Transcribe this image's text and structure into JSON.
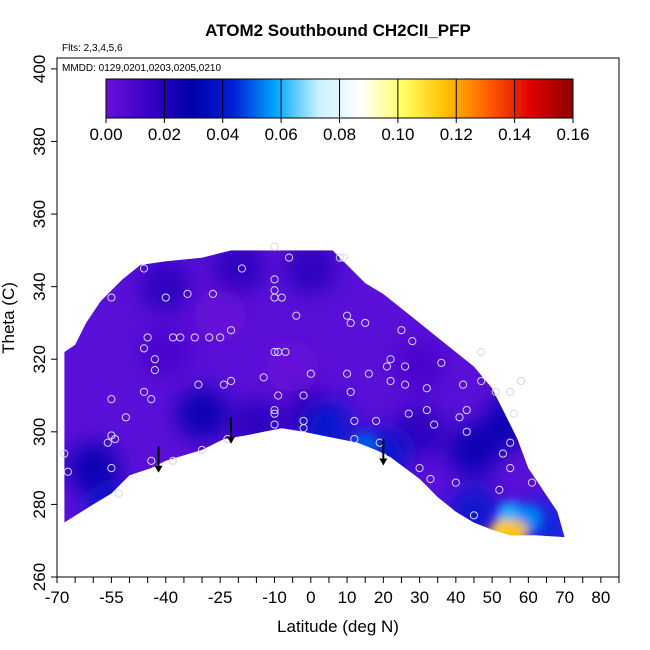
{
  "chart_data": {
    "type": "heatmap",
    "title": "ATOM2 Southbound CH2ClΙ_PFP",
    "annotations": {
      "flights": "Flts: 2,3,4,5,6",
      "dates": "MMDD: 0129,0201,0203,0205,0210"
    },
    "xlabel": "Latitude (deg N)",
    "ylabel": "Theta (C)",
    "xlim": [
      -70,
      85
    ],
    "ylim": [
      260,
      403
    ],
    "x_ticks": [
      -70,
      -55,
      -40,
      -25,
      -10,
      0,
      10,
      20,
      30,
      40,
      50,
      60,
      70,
      80
    ],
    "x_tick_labels": [
      "-70",
      "-55",
      "-40",
      "-25",
      "-10",
      "0",
      "10",
      "20",
      "30",
      "40",
      "50",
      "60",
      "70",
      "80"
    ],
    "x_minor_ticks": [
      -65,
      -60,
      -50,
      -45,
      -35,
      -30,
      -20,
      -15,
      -5,
      5,
      15,
      25,
      35,
      45,
      55,
      65,
      75,
      85
    ],
    "y_ticks": [
      260,
      280,
      300,
      320,
      340,
      360,
      380,
      400
    ],
    "y_tick_labels": [
      "260",
      "280",
      "300",
      "320",
      "340",
      "360",
      "380",
      "400"
    ],
    "colorbar": {
      "range": [
        0,
        0.16
      ],
      "ticks": [
        0,
        0.02,
        0.04,
        0.06,
        0.08,
        0.1,
        0.12,
        0.14,
        0.16
      ],
      "tick_labels": [
        "0.00",
        "0.02",
        "0.04",
        "0.06",
        "0.08",
        "0.10",
        "0.12",
        "0.14",
        "0.16"
      ],
      "colors": [
        "#6a10d8",
        "#3a00c8",
        "#0000a8",
        "#0020d8",
        "#00a8ff",
        "#c8f0ff",
        "#ffffff",
        "#ffff60",
        "#ffc000",
        "#ff6000",
        "#e00000",
        "#900000"
      ]
    },
    "field": {
      "upper_boundary": [
        [
          -68,
          322
        ],
        [
          -65,
          324
        ],
        [
          -62,
          330
        ],
        [
          -58,
          336
        ],
        [
          -52,
          342
        ],
        [
          -47,
          346
        ],
        [
          -40,
          347
        ],
        [
          -30,
          348
        ],
        [
          -22,
          350
        ],
        [
          -10,
          350
        ],
        [
          0,
          350
        ],
        [
          6,
          350
        ],
        [
          10,
          346
        ],
        [
          15,
          341
        ],
        [
          20,
          338
        ],
        [
          25,
          334
        ],
        [
          30,
          330
        ],
        [
          35,
          326
        ],
        [
          40,
          322
        ],
        [
          45,
          318
        ],
        [
          50,
          312
        ],
        [
          54,
          304
        ],
        [
          57,
          298
        ],
        [
          60,
          290
        ],
        [
          64,
          284
        ],
        [
          68,
          278
        ],
        [
          70,
          271
        ]
      ],
      "lower_boundary": [
        [
          -68,
          275
        ],
        [
          -60,
          280
        ],
        [
          -55,
          283
        ],
        [
          -50,
          288
        ],
        [
          -44,
          290
        ],
        [
          -40,
          292
        ],
        [
          -30,
          295
        ],
        [
          -24,
          298
        ],
        [
          -18,
          299
        ],
        [
          -13,
          300
        ],
        [
          -8,
          301
        ],
        [
          -2,
          300
        ],
        [
          3,
          299
        ],
        [
          8,
          298
        ],
        [
          13,
          297
        ],
        [
          18,
          295
        ],
        [
          22,
          293
        ],
        [
          26,
          290
        ],
        [
          30,
          287
        ],
        [
          35,
          282
        ],
        [
          40,
          278
        ],
        [
          45,
          275
        ],
        [
          50,
          273
        ],
        [
          55,
          271.5
        ],
        [
          62,
          271.5
        ],
        [
          70,
          271
        ]
      ],
      "features": [
        {
          "x": -5,
          "y": 318,
          "value": 0.0
        },
        {
          "x": -40,
          "y": 322,
          "value": 0.01
        },
        {
          "x": -25,
          "y": 332,
          "value": 0.0
        },
        {
          "x": 30,
          "y": 318,
          "value": 0.01
        },
        {
          "x": -40,
          "y": 340,
          "value": 0.02
        },
        {
          "x": 0,
          "y": 345,
          "value": 0.02
        },
        {
          "x": -20,
          "y": 345,
          "value": 0.02
        },
        {
          "x": -60,
          "y": 290,
          "value": 0.03
        },
        {
          "x": -15,
          "y": 302,
          "value": 0.02
        },
        {
          "x": 0,
          "y": 305,
          "value": 0.02
        },
        {
          "x": 30,
          "y": 300,
          "value": 0.02
        },
        {
          "x": 45,
          "y": 295,
          "value": 0.03
        },
        {
          "x": 55,
          "y": 303,
          "value": 0.03
        },
        {
          "x": -30,
          "y": 305,
          "value": 0.03
        },
        {
          "x": 5,
          "y": 301,
          "value": 0.04
        },
        {
          "x": 15,
          "y": 296,
          "value": 0.05
        },
        {
          "x": 20,
          "y": 294,
          "value": 0.04
        },
        {
          "x": -55,
          "y": 278,
          "value": 0.04
        },
        {
          "x": 45,
          "y": 278,
          "value": 0.04
        },
        {
          "x": 55,
          "y": 277,
          "value": 0.06
        },
        {
          "x": 60,
          "y": 276,
          "value": 0.055
        },
        {
          "x": 53,
          "y": 272,
          "value": 0.11
        },
        {
          "x": 56,
          "y": 272,
          "value": 0.115
        },
        {
          "x": 64,
          "y": 274,
          "value": 0.045
        }
      ]
    },
    "samples": [
      {
        "x": -68,
        "y": 294
      },
      {
        "x": -67,
        "y": 289
      },
      {
        "x": -56,
        "y": 297
      },
      {
        "x": -55,
        "y": 299
      },
      {
        "x": -54,
        "y": 298
      },
      {
        "x": -55,
        "y": 290
      },
      {
        "x": -53,
        "y": 283
      },
      {
        "x": -55,
        "y": 309
      },
      {
        "x": -51,
        "y": 304
      },
      {
        "x": -46,
        "y": 311
      },
      {
        "x": -44,
        "y": 309
      },
      {
        "x": -44,
        "y": 292
      },
      {
        "x": -38,
        "y": 292
      },
      {
        "x": -55,
        "y": 337
      },
      {
        "x": -46,
        "y": 345
      },
      {
        "x": -45,
        "y": 326
      },
      {
        "x": -46,
        "y": 323
      },
      {
        "x": -43,
        "y": 320
      },
      {
        "x": -43,
        "y": 317
      },
      {
        "x": -40,
        "y": 337
      },
      {
        "x": -38,
        "y": 326
      },
      {
        "x": -36,
        "y": 326
      },
      {
        "x": -34,
        "y": 338
      },
      {
        "x": -32,
        "y": 326
      },
      {
        "x": -31,
        "y": 313
      },
      {
        "x": -30,
        "y": 295
      },
      {
        "x": -28,
        "y": 326
      },
      {
        "x": -27,
        "y": 338
      },
      {
        "x": -25,
        "y": 326
      },
      {
        "x": -24,
        "y": 313
      },
      {
        "x": -22,
        "y": 314
      },
      {
        "x": -23,
        "y": 298
      },
      {
        "x": -22,
        "y": 328
      },
      {
        "x": -19,
        "y": 345
      },
      {
        "x": -13,
        "y": 315
      },
      {
        "x": -10,
        "y": 305
      },
      {
        "x": -10,
        "y": 306
      },
      {
        "x": -10,
        "y": 302
      },
      {
        "x": -10,
        "y": 322
      },
      {
        "x": -9,
        "y": 322
      },
      {
        "x": -10,
        "y": 337
      },
      {
        "x": -10,
        "y": 339
      },
      {
        "x": -10,
        "y": 342
      },
      {
        "x": -10,
        "y": 351
      },
      {
        "x": -8,
        "y": 337
      },
      {
        "x": -7,
        "y": 322
      },
      {
        "x": -9,
        "y": 310
      },
      {
        "x": -6,
        "y": 348
      },
      {
        "x": -4,
        "y": 332
      },
      {
        "x": -2,
        "y": 310
      },
      {
        "x": -2,
        "y": 303
      },
      {
        "x": -2,
        "y": 301
      },
      {
        "x": 0,
        "y": 316
      },
      {
        "x": 8,
        "y": 348
      },
      {
        "x": 9,
        "y": 348
      },
      {
        "x": 10,
        "y": 332
      },
      {
        "x": 11,
        "y": 330
      },
      {
        "x": 10,
        "y": 316
      },
      {
        "x": 11,
        "y": 311
      },
      {
        "x": 12,
        "y": 303
      },
      {
        "x": 12,
        "y": 298
      },
      {
        "x": 15,
        "y": 330
      },
      {
        "x": 16,
        "y": 316
      },
      {
        "x": 18,
        "y": 303
      },
      {
        "x": 19,
        "y": 297
      },
      {
        "x": 20,
        "y": 293
      },
      {
        "x": 21,
        "y": 318
      },
      {
        "x": 22,
        "y": 320
      },
      {
        "x": 22,
        "y": 314
      },
      {
        "x": 25,
        "y": 328
      },
      {
        "x": 26,
        "y": 318
      },
      {
        "x": 26,
        "y": 313
      },
      {
        "x": 27,
        "y": 305
      },
      {
        "x": 28,
        "y": 325
      },
      {
        "x": 30,
        "y": 290
      },
      {
        "x": 32,
        "y": 306
      },
      {
        "x": 32,
        "y": 312
      },
      {
        "x": 33,
        "y": 287
      },
      {
        "x": 34,
        "y": 302
      },
      {
        "x": 36,
        "y": 319
      },
      {
        "x": 40,
        "y": 286
      },
      {
        "x": 41,
        "y": 304
      },
      {
        "x": 43,
        "y": 306
      },
      {
        "x": 42,
        "y": 313
      },
      {
        "x": 43,
        "y": 300
      },
      {
        "x": 45,
        "y": 277
      },
      {
        "x": 47,
        "y": 314
      },
      {
        "x": 47,
        "y": 322
      },
      {
        "x": 51,
        "y": 311
      },
      {
        "x": 52,
        "y": 284
      },
      {
        "x": 53,
        "y": 294
      },
      {
        "x": 55,
        "y": 311
      },
      {
        "x": 55,
        "y": 297
      },
      {
        "x": 55,
        "y": 290
      },
      {
        "x": 56,
        "y": 305
      },
      {
        "x": 58,
        "y": 314
      },
      {
        "x": 61,
        "y": 286
      }
    ],
    "flight_markers": [
      {
        "x": -42,
        "y_top": 296,
        "y_bottom": 289
      },
      {
        "x": -22,
        "y_top": 304,
        "y_bottom": 297
      },
      {
        "x": 20,
        "y_top": 298,
        "y_bottom": 291
      }
    ]
  }
}
